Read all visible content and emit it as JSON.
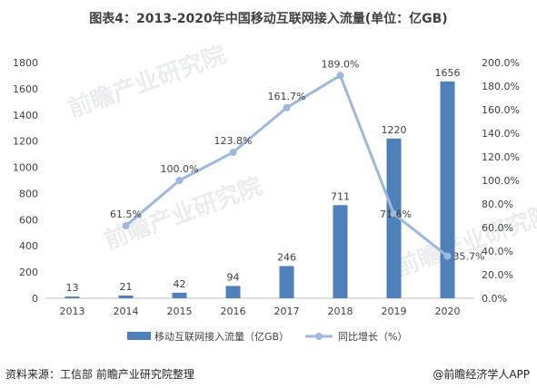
{
  "title": "图表4：2013-2020年中国移动互联网接入流量(单位：亿GB)",
  "source": "资料来源：工信部 前瞻产业研究院整理",
  "brand": "@前瞻经济学人APP",
  "watermark": "前瞻产业研究院",
  "colors": {
    "bar": "#4e81b9",
    "line": "#9cb9dc",
    "axis": "#bfbfbf",
    "text": "#404040"
  },
  "chart_data": {
    "type": "bar+line",
    "categories": [
      "2013",
      "2014",
      "2015",
      "2016",
      "2017",
      "2018",
      "2019",
      "2020"
    ],
    "series": [
      {
        "name": "移动互联网接入流量（亿GB）",
        "type": "bar",
        "axis": "left",
        "values": [
          13,
          21,
          42,
          94,
          246,
          711,
          1220,
          1656
        ],
        "labels": [
          "13",
          "21",
          "42",
          "94",
          "246",
          "711",
          "1220",
          "1656"
        ]
      },
      {
        "name": "同比增长（%）",
        "type": "line",
        "axis": "right",
        "values": [
          null,
          61.5,
          100.0,
          123.8,
          161.7,
          189.0,
          71.6,
          35.7
        ],
        "labels": [
          "",
          "61.5%",
          "100.0%",
          "123.8%",
          "161.7%",
          "189.0%",
          "71.6%",
          "35.7%"
        ]
      }
    ],
    "y_left": {
      "range": [
        0,
        1800
      ],
      "ticks": [
        "0",
        "200",
        "400",
        "600",
        "800",
        "1000",
        "1200",
        "1400",
        "1600",
        "1800"
      ]
    },
    "y_right": {
      "range": [
        0,
        200
      ],
      "ticks": [
        "0.0%",
        "20.0%",
        "40.0%",
        "60.0%",
        "80.0%",
        "100.0%",
        "120.0%",
        "140.0%",
        "160.0%",
        "180.0%",
        "200.0%"
      ]
    },
    "legend_position": "bottom",
    "grid": false
  }
}
